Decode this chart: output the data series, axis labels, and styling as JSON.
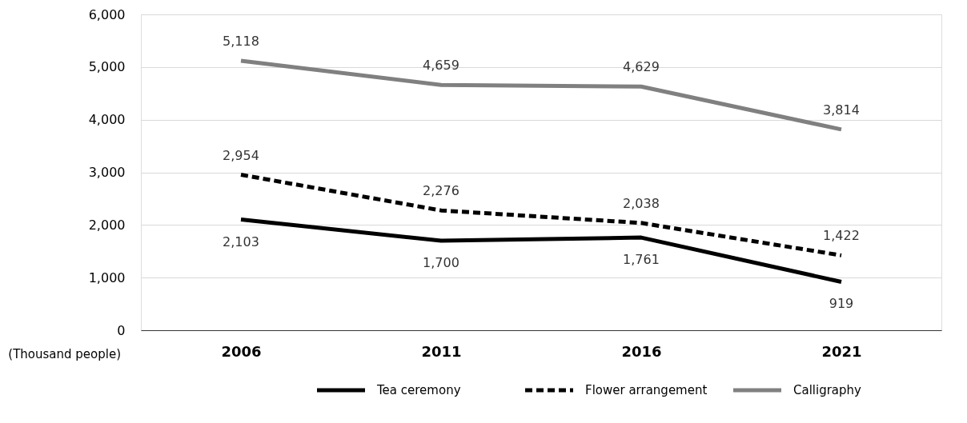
{
  "chart_data": {
    "type": "line",
    "ylabel": "(Thousand people)",
    "categories": [
      "2006",
      "2011",
      "2016",
      "2021"
    ],
    "series": [
      {
        "name": "Tea ceremony",
        "color": "#000000",
        "line_style": "solid",
        "values": [
          2103,
          1700,
          1761,
          919
        ],
        "value_labels": [
          "2,103",
          "1,700",
          "1,761",
          "919"
        ]
      },
      {
        "name": "Flower arrangement",
        "color": "#000000",
        "line_style": "dashed",
        "values": [
          2954,
          2276,
          2038,
          1422
        ],
        "value_labels": [
          "2,954",
          "2,276",
          "2,038",
          "1,422"
        ]
      },
      {
        "name": "Calligraphy",
        "color": "#808080",
        "line_style": "solid",
        "values": [
          5118,
          4659,
          4629,
          3814
        ],
        "value_labels": [
          "5,118",
          "4,659",
          "4,629",
          "3,814"
        ]
      }
    ],
    "ylim": [
      0,
      6000
    ],
    "yticks": [
      {
        "value": 0,
        "label": "0"
      },
      {
        "value": 1000,
        "label": "1,000"
      },
      {
        "value": 2000,
        "label": "2,000"
      },
      {
        "value": 3000,
        "label": "3,000"
      },
      {
        "value": 4000,
        "label": "4,000"
      },
      {
        "value": 5000,
        "label": "5,000"
      },
      {
        "value": 6000,
        "label": "6,000"
      }
    ],
    "grid": "y",
    "legend": "bottom",
    "marker": "none"
  }
}
